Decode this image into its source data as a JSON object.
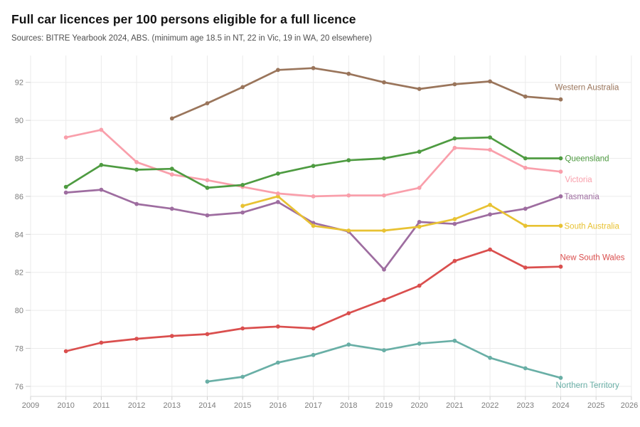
{
  "header": {
    "title": "Full car licences per 100 persons eligible for a full licence",
    "subtitle": "Sources: BITRE Yearbook 2024, ABS. (minimum age 18.5 in NT, 22 in Vic, 19 in WA, 20 elsewhere)"
  },
  "colors": {
    "background": "#ffffff",
    "gridline": "#ebebeb",
    "tick": "#cfcfcf",
    "axis_line": "#d9d9d9",
    "axis_text": "#7d7d7d",
    "title_text": "#121212",
    "subtitle_text": "#4f4f4f"
  },
  "chart_data": {
    "type": "line",
    "title": "Full car licences per 100 persons eligible for a full licence",
    "subtitle": "Sources: BITRE Yearbook 2024, ABS. (minimum age 18.5 in NT, 22 in Vic, 19 in WA, 20 elsewhere)",
    "xlabel": "",
    "ylabel": "",
    "grid": true,
    "legend_position": "line-end-labels",
    "x_axis": {
      "ticks": [
        2009,
        2010,
        2011,
        2012,
        2013,
        2014,
        2015,
        2016,
        2017,
        2018,
        2019,
        2020,
        2021,
        2022,
        2023,
        2024,
        2025,
        2026
      ],
      "range": [
        2008.9,
        2026.2
      ]
    },
    "y_axis": {
      "ticks": [
        76,
        78,
        80,
        82,
        84,
        86,
        88,
        90,
        92
      ],
      "range": [
        75.5,
        93.4
      ]
    },
    "series": [
      {
        "name": "Tasmania",
        "color": "#9e6da0",
        "label_offset": [
          5,
          4
        ],
        "years": [
          2010,
          2011,
          2012,
          2013,
          2014,
          2015,
          2016,
          2017,
          2018,
          2019,
          2020,
          2021,
          2022,
          2023,
          2024
        ],
        "values": [
          86.2,
          86.35,
          85.6,
          85.35,
          85.0,
          85.15,
          85.7,
          84.6,
          84.15,
          82.15,
          84.65,
          84.55,
          85.05,
          85.35,
          86.0
        ]
      },
      {
        "name": "South Australia",
        "color": "#e8c233",
        "label_offset": [
          5,
          4
        ],
        "years": [
          2015,
          2016,
          2017,
          2018,
          2019,
          2020,
          2021,
          2022,
          2023,
          2024
        ],
        "values": [
          85.5,
          86.0,
          84.45,
          84.2,
          84.2,
          84.4,
          84.8,
          85.55,
          84.45,
          84.45
        ]
      },
      {
        "name": "Victoria",
        "color": "#f99fab",
        "label_offset": [
          6,
          15
        ],
        "years": [
          2010,
          2011,
          2012,
          2013,
          2014,
          2015,
          2016,
          2017,
          2018,
          2019,
          2020,
          2021,
          2022,
          2023,
          2024
        ],
        "values": [
          89.1,
          89.5,
          87.8,
          87.15,
          86.85,
          86.5,
          86.15,
          86.0,
          86.05,
          86.05,
          86.45,
          88.55,
          88.45,
          87.5,
          87.3
        ]
      },
      {
        "name": "Queensland",
        "color": "#4e9b41",
        "label_offset": [
          6,
          4
        ],
        "years": [
          2010,
          2011,
          2012,
          2013,
          2014,
          2015,
          2016,
          2017,
          2018,
          2019,
          2020,
          2021,
          2022,
          2023,
          2024
        ],
        "values": [
          86.5,
          87.65,
          87.4,
          87.45,
          86.45,
          86.6,
          87.2,
          87.6,
          87.9,
          88.0,
          88.35,
          89.05,
          89.1,
          88.0,
          88.0
        ]
      },
      {
        "name": "Western Australia",
        "color": "#9a755b",
        "label_offset": [
          -8,
          -13
        ],
        "years": [
          2013,
          2014,
          2015,
          2016,
          2017,
          2018,
          2019,
          2020,
          2021,
          2022,
          2023,
          2024
        ],
        "values": [
          90.1,
          90.9,
          91.75,
          92.65,
          92.75,
          92.45,
          92.0,
          91.65,
          91.9,
          92.05,
          91.25,
          91.1
        ]
      },
      {
        "name": "New South Wales",
        "color": "#da4f4e",
        "label_offset": [
          -1,
          -9
        ],
        "years": [
          2010,
          2011,
          2012,
          2013,
          2014,
          2015,
          2016,
          2017,
          2018,
          2019,
          2020,
          2021,
          2022,
          2023,
          2024
        ],
        "values": [
          77.85,
          78.3,
          78.5,
          78.65,
          78.75,
          79.05,
          79.15,
          79.05,
          79.85,
          80.55,
          81.3,
          82.6,
          83.2,
          82.25,
          82.3
        ]
      },
      {
        "name": "Northern Territory",
        "color": "#69afa6",
        "label_offset": [
          -7,
          14
        ],
        "years": [
          2014,
          2015,
          2016,
          2017,
          2018,
          2019,
          2020,
          2021,
          2022,
          2023,
          2024
        ],
        "values": [
          76.25,
          76.5,
          77.25,
          77.65,
          78.2,
          77.9,
          78.25,
          78.4,
          77.5,
          76.95,
          76.45
        ]
      }
    ]
  }
}
